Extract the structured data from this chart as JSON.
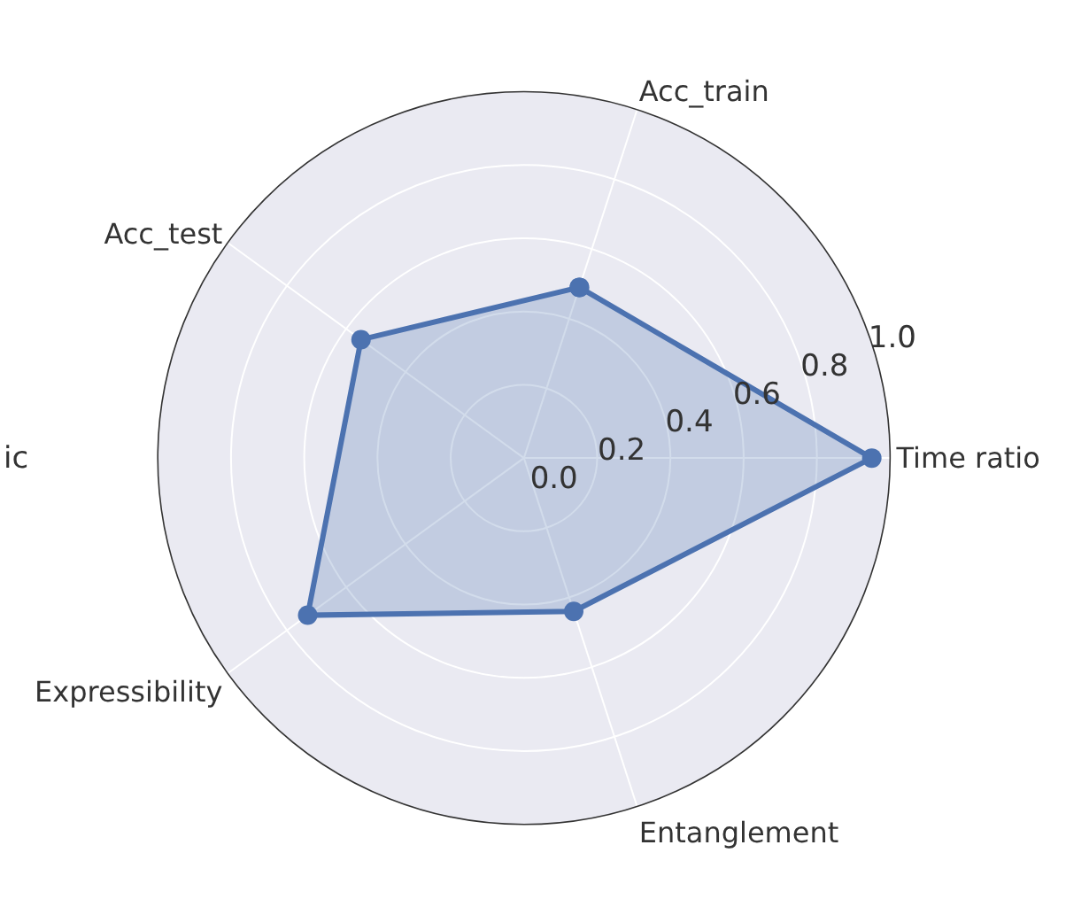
{
  "chart_data": {
    "type": "radar",
    "categories": [
      "Acc_train",
      "Time ratio",
      "Entanglement",
      "Expressibility",
      "Acc_test"
    ],
    "series": [
      {
        "color": "#4c72b0",
        "values": [
          0.49,
          0.95,
          0.44,
          0.73,
          0.55
        ]
      }
    ],
    "ylim": [
      0,
      1.0
    ],
    "yticks": [
      {
        "value": 0,
        "label": "0.0"
      },
      0.2,
      0.4,
      0.6,
      0.8,
      {
        "value": 1,
        "label": "1.0"
      }
    ],
    "grid": true,
    "marker": "circle",
    "line_style": "solid",
    "annotations": [
      "ic"
    ]
  }
}
